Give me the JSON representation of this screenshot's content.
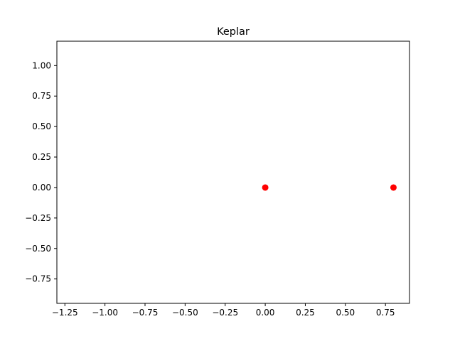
{
  "chart_data": {
    "type": "scatter",
    "title": "Keplar",
    "xlabel": "",
    "ylabel": "",
    "xlim": [
      -1.3,
      0.9
    ],
    "ylim": [
      -0.95,
      1.2
    ],
    "xticks": [
      -1.25,
      -1.0,
      -0.75,
      -0.5,
      -0.25,
      0.0,
      0.25,
      0.5,
      0.75
    ],
    "xtick_labels": [
      "−1.25",
      "−1.00",
      "−0.75",
      "−0.50",
      "−0.25",
      "0.00",
      "0.25",
      "0.50",
      "0.75"
    ],
    "yticks": [
      1.0,
      0.75,
      0.5,
      0.25,
      0.0,
      -0.25,
      -0.5,
      -0.75
    ],
    "ytick_labels": [
      "1.00",
      "0.75",
      "0.50",
      "0.25",
      "0.00",
      "−0.25",
      "−0.50",
      "−0.75"
    ],
    "grid": false,
    "series": [
      {
        "color": "#ff0000",
        "x": [
          0.0,
          0.8
        ],
        "y": [
          0.0,
          0.0
        ]
      }
    ]
  }
}
